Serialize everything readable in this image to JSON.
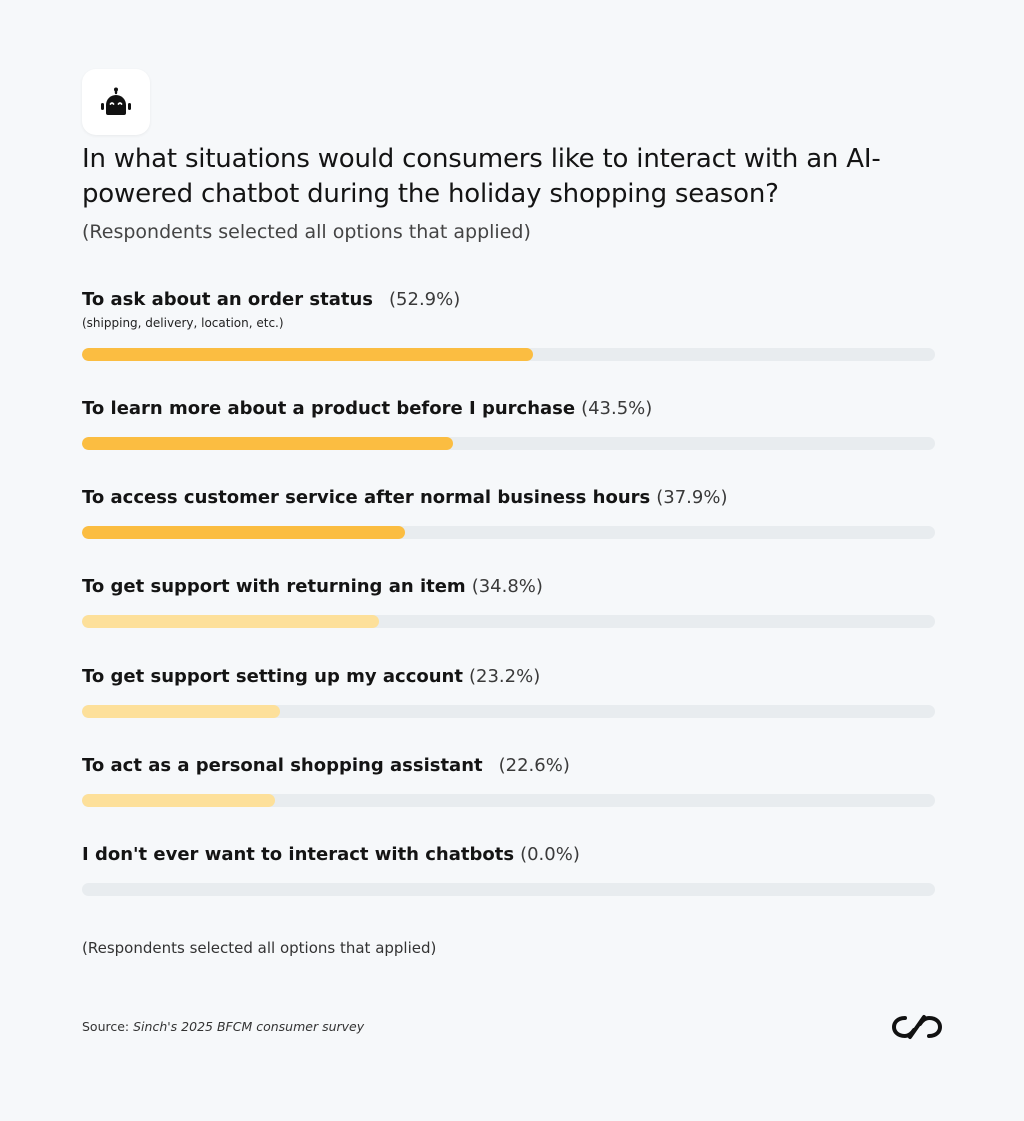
{
  "header": {
    "icon": "robot-icon",
    "title": "In what situations would consumers like to interact with an AI-powered chatbot during the holiday shopping season?",
    "subtitle": "(Respondents selected all options that applied)"
  },
  "chart_data": {
    "type": "bar",
    "orientation": "horizontal",
    "unit": "%",
    "xlim": [
      0,
      100
    ],
    "categories": [
      "To ask about an order status",
      "To learn more about a product before I purchase",
      "To access customer service after normal business hours",
      "To get support with returning an item",
      "To get support setting up my account",
      "To act as a personal shopping assistant",
      "I don't ever want to interact with chatbots"
    ],
    "values": [
      52.9,
      43.5,
      37.9,
      34.8,
      23.2,
      22.6,
      0.0
    ],
    "value_labels": [
      "(52.9%)",
      "(43.5%)",
      "(37.9%)",
      "(34.8%)",
      "(23.2%)",
      "(22.6%)",
      "(0.0%)"
    ],
    "notes": [
      "(shipping, delivery, location, etc.)",
      "",
      "",
      "",
      "",
      "",
      ""
    ],
    "colors": [
      "#fbbd41",
      "#fbbd41",
      "#fbbd41",
      "#fde09a",
      "#fde09a",
      "#fde09a",
      "#fde09a"
    ],
    "track_color": "#e8ecef"
  },
  "footer": {
    "footnote": "(Respondents selected all options that applied)",
    "source_prefix": "Source: ",
    "source_text": "Sinch's 2025 BFCM consumer survey",
    "logo": "sinch-logo"
  }
}
